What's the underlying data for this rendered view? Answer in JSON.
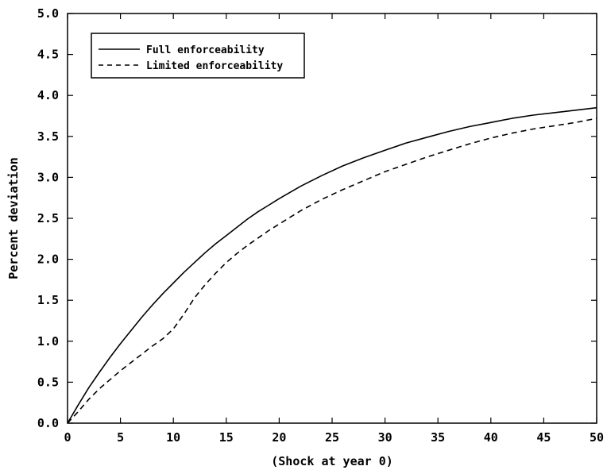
{
  "chart_data": {
    "type": "line",
    "title": "",
    "xlabel": "(Shock at year 0)",
    "ylabel": "Percent deviation",
    "xlim": [
      0,
      50
    ],
    "ylim": [
      0,
      5
    ],
    "xticks": [
      0,
      5,
      10,
      15,
      20,
      25,
      30,
      35,
      40,
      45,
      50
    ],
    "xtick_labels": [
      "0",
      "5",
      "10",
      "15",
      "20",
      "25",
      "30",
      "35",
      "40",
      "45",
      "50"
    ],
    "yticks": [
      0,
      0.5,
      1,
      1.5,
      2,
      2.5,
      3,
      3.5,
      4,
      4.5,
      5
    ],
    "ytick_labels": [
      "0.0",
      "0.5",
      "1.0",
      "1.5",
      "2.0",
      "2.5",
      "3.0",
      "3.5",
      "4.0",
      "4.5",
      "5.0"
    ],
    "grid": false,
    "legend_position": "top-left",
    "series": [
      {
        "name": "Full enforceability",
        "style": "solid",
        "color": "#000000",
        "x": [
          0,
          1,
          2,
          3,
          4,
          5,
          6,
          7,
          8,
          9,
          10,
          11,
          12,
          13,
          14,
          15,
          16,
          17,
          18,
          19,
          20,
          22,
          24,
          26,
          28,
          30,
          32,
          34,
          36,
          38,
          40,
          42,
          44,
          46,
          48,
          50
        ],
        "y": [
          0,
          0.22,
          0.43,
          0.62,
          0.8,
          0.97,
          1.13,
          1.29,
          1.44,
          1.58,
          1.71,
          1.84,
          1.96,
          2.08,
          2.19,
          2.29,
          2.39,
          2.49,
          2.58,
          2.66,
          2.74,
          2.89,
          3.02,
          3.14,
          3.24,
          3.33,
          3.42,
          3.49,
          3.56,
          3.62,
          3.67,
          3.72,
          3.76,
          3.79,
          3.82,
          3.85
        ]
      },
      {
        "name": "Limited enforceability",
        "style": "dashed",
        "color": "#000000",
        "x": [
          0,
          1,
          2,
          3,
          4,
          5,
          6,
          7,
          8,
          9,
          10,
          11,
          12,
          13,
          14,
          15,
          16,
          17,
          18,
          19,
          20,
          22,
          24,
          26,
          28,
          30,
          32,
          34,
          36,
          38,
          40,
          42,
          44,
          46,
          48,
          50
        ],
        "y": [
          0,
          0.14,
          0.29,
          0.42,
          0.53,
          0.64,
          0.74,
          0.84,
          0.94,
          1.03,
          1.15,
          1.33,
          1.53,
          1.69,
          1.83,
          1.96,
          2.07,
          2.17,
          2.26,
          2.35,
          2.43,
          2.59,
          2.73,
          2.85,
          2.96,
          3.07,
          3.16,
          3.25,
          3.33,
          3.41,
          3.48,
          3.54,
          3.59,
          3.63,
          3.67,
          3.72
        ]
      }
    ]
  }
}
